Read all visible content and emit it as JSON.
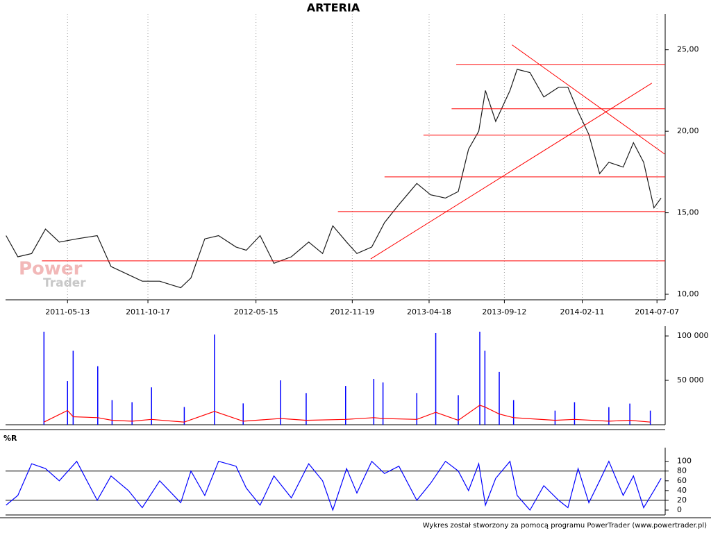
{
  "watermark": {
    "line1": "Power",
    "line2": "Trader"
  },
  "footer": "Wykres został stworzony za pomocą programu PowerTrader (www.powertrader.pl)",
  "chart_data": [
    {
      "type": "line",
      "title": "ARTERIA",
      "x": [
        "2011-01-13",
        "2011-02-05",
        "2011-03-04",
        "2011-03-31",
        "2011-04-27",
        "2011-05-31",
        "2011-07-10",
        "2011-08-06",
        "2011-09-09",
        "2011-10-06",
        "2011-11-09",
        "2011-12-20",
        "2012-01-09",
        "2012-02-05",
        "2012-03-03",
        "2012-04-06",
        "2012-04-26",
        "2012-05-23",
        "2012-06-19",
        "2012-07-23",
        "2012-08-26",
        "2012-09-22",
        "2012-10-12",
        "2012-11-08",
        "2012-11-28",
        "2012-12-27",
        "2013-01-21",
        "2013-02-18",
        "2013-03-25",
        "2013-04-21",
        "2013-05-20",
        "2013-06-14",
        "2013-07-04",
        "2013-07-24",
        "2013-08-06",
        "2013-08-26",
        "2013-09-23",
        "2013-10-07",
        "2013-11-01",
        "2013-11-28",
        "2013-12-27",
        "2014-01-14",
        "2014-02-03",
        "2014-02-24",
        "2014-03-17",
        "2014-04-04",
        "2014-05-02",
        "2014-05-22",
        "2014-06-11",
        "2014-07-01",
        "2014-07-15"
      ],
      "series": [
        {
          "color": "#1a1a1a",
          "values": [
            13.6,
            12.3,
            12.5,
            14.0,
            13.2,
            13.4,
            13.6,
            11.7,
            11.2,
            10.8,
            10.8,
            10.4,
            11.0,
            13.4,
            13.6,
            12.9,
            12.7,
            13.6,
            11.9,
            12.3,
            13.2,
            12.5,
            14.2,
            13.2,
            12.5,
            12.9,
            14.4,
            15.5,
            16.8,
            16.1,
            15.9,
            16.3,
            18.9,
            20.0,
            22.5,
            20.6,
            22.5,
            23.8,
            23.6,
            22.1,
            22.7,
            22.7,
            21.2,
            19.8,
            17.4,
            18.1,
            17.8,
            19.3,
            18.1,
            15.3,
            15.9
          ]
        }
      ],
      "xlim": [
        "2011-01-12",
        "2014-07-23"
      ],
      "xticks": [
        "2011-05-13",
        "2011-10-17",
        "2012-05-15",
        "2012-11-19",
        "2013-04-18",
        "2013-09-12",
        "2014-02-11",
        "2014-07-07"
      ],
      "ylim": [
        9.66,
        27.2
      ],
      "yticks": [
        {
          "value": 10,
          "label": "10,00"
        },
        {
          "value": 15,
          "label": "15,00"
        },
        {
          "value": 20,
          "label": "20,00"
        },
        {
          "value": 25,
          "label": "25,00"
        }
      ],
      "grid": true,
      "lines": [
        {
          "color": "#ff0000",
          "x": [
            "2011-03-24",
            "2014-07-23"
          ],
          "values": [
            12.05,
            12.05
          ]
        },
        {
          "color": "#ff0000",
          "x": [
            "2012-10-22",
            "2014-07-23"
          ],
          "values": [
            15.07,
            15.07
          ]
        },
        {
          "color": "#ff0000",
          "x": [
            "2013-01-21",
            "2014-07-23"
          ],
          "values": [
            17.2,
            17.2
          ]
        },
        {
          "color": "#ff0000",
          "x": [
            "2013-04-07",
            "2014-07-23"
          ],
          "values": [
            19.76,
            19.76
          ]
        },
        {
          "color": "#ff0000",
          "x": [
            "2013-06-01",
            "2014-07-23"
          ],
          "values": [
            21.38,
            21.38
          ]
        },
        {
          "color": "#ff0000",
          "x": [
            "2013-06-10",
            "2014-07-23"
          ],
          "values": [
            24.1,
            24.1
          ]
        },
        {
          "color": "#ff0000",
          "x": [
            "2012-12-25",
            "2014-06-27"
          ],
          "values": [
            12.17,
            22.95
          ]
        },
        {
          "color": "#ff0000",
          "x": [
            "2013-09-27",
            "2014-07-22"
          ],
          "values": [
            25.3,
            18.6
          ]
        }
      ]
    },
    {
      "type": "bar",
      "x": [
        "2011-03-28",
        "2011-05-13",
        "2011-05-24",
        "2011-07-11",
        "2011-08-08",
        "2011-09-16",
        "2011-10-24",
        "2011-12-27",
        "2012-02-24",
        "2012-04-20",
        "2012-07-02",
        "2012-08-21",
        "2012-11-06",
        "2012-12-31",
        "2013-01-18",
        "2013-03-25",
        "2013-05-01",
        "2013-06-14",
        "2013-07-26",
        "2013-08-05",
        "2013-09-02",
        "2013-09-30",
        "2013-12-20",
        "2014-01-27",
        "2014-04-04",
        "2014-05-15",
        "2014-06-24"
      ],
      "series": [
        {
          "color": "#0000ff",
          "values": [
            104800,
            49200,
            83300,
            65900,
            27800,
            25400,
            42100,
            20000,
            101600,
            24000,
            50000,
            35700,
            43700,
            51600,
            47600,
            35700,
            103200,
            33300,
            104800,
            83300,
            59500,
            27800,
            15900,
            25400,
            19800,
            23800,
            15900
          ]
        },
        {
          "type": "line",
          "color": "#ff0000",
          "values": [
            3000,
            16000,
            9000,
            8000,
            5000,
            4000,
            6000,
            3000,
            15000,
            4000,
            7000,
            5000,
            6000,
            8000,
            7000,
            6000,
            14000,
            5000,
            22000,
            20000,
            12000,
            8000,
            5000,
            6000,
            4000,
            5000,
            3000
          ]
        }
      ],
      "xlim": [
        "2011-01-12",
        "2014-07-23"
      ],
      "ylim": [
        0,
        111000
      ],
      "yticks": [
        {
          "value": 50000,
          "label": "50 000"
        },
        {
          "value": 100000,
          "label": "100 000"
        }
      ]
    },
    {
      "type": "line",
      "title": "%R",
      "x": [
        "2011-01-13",
        "2011-02-05",
        "2011-03-04",
        "2011-03-31",
        "2011-04-27",
        "2011-05-31",
        "2011-07-10",
        "2011-08-06",
        "2011-09-09",
        "2011-10-06",
        "2011-11-09",
        "2011-12-20",
        "2012-01-09",
        "2012-02-05",
        "2012-03-03",
        "2012-04-06",
        "2012-04-26",
        "2012-05-23",
        "2012-06-19",
        "2012-07-23",
        "2012-08-26",
        "2012-09-22",
        "2012-10-12",
        "2012-11-08",
        "2012-11-28",
        "2012-12-27",
        "2013-01-21",
        "2013-02-18",
        "2013-03-25",
        "2013-04-21",
        "2013-05-20",
        "2013-06-14",
        "2013-07-04",
        "2013-07-24",
        "2013-08-06",
        "2013-08-26",
        "2013-09-23",
        "2013-10-07",
        "2013-11-01",
        "2013-11-28",
        "2013-12-27",
        "2014-01-14",
        "2014-02-03",
        "2014-02-24",
        "2014-03-17",
        "2014-04-04",
        "2014-05-02",
        "2014-05-22",
        "2014-06-11",
        "2014-07-01",
        "2014-07-15"
      ],
      "series": [
        {
          "color": "#0000ff",
          "values": [
            10,
            30,
            95,
            85,
            60,
            100,
            20,
            70,
            40,
            5,
            60,
            15,
            80,
            30,
            100,
            90,
            45,
            10,
            70,
            25,
            95,
            60,
            0,
            85,
            35,
            100,
            75,
            90,
            20,
            55,
            100,
            80,
            40,
            95,
            10,
            65,
            100,
            30,
            0,
            50,
            20,
            5,
            85,
            15,
            60,
            100,
            30,
            70,
            5,
            40,
            65
          ]
        }
      ],
      "xlim": [
        "2011-01-12",
        "2014-07-23"
      ],
      "ylim": [
        -10,
        128
      ],
      "yticks": [
        0,
        20,
        40,
        60,
        80,
        100
      ],
      "levels": [
        20,
        80
      ]
    }
  ]
}
